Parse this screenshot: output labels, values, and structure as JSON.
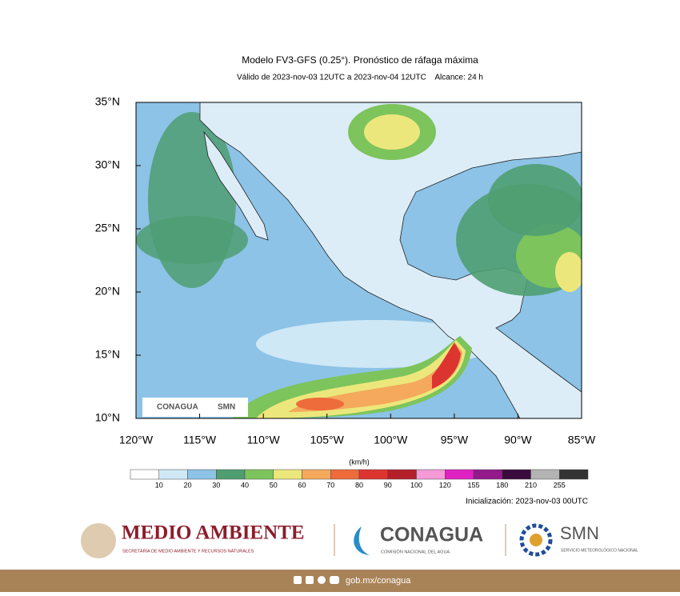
{
  "title": "Modelo FV3-GFS (0.25°). Pronóstico de ráfaga máxima",
  "subtitle": "Válido de 2023-nov-03 12UTC a 2023-nov-04 12UTC    Alcance: 24 h",
  "map": {
    "lat_ticks": [
      {
        "value": 35,
        "label": "35°N"
      },
      {
        "value": 30,
        "label": "30°N"
      },
      {
        "value": 25,
        "label": "25°N"
      },
      {
        "value": 20,
        "label": "20°N"
      },
      {
        "value": 15,
        "label": "15°N"
      },
      {
        "value": 10,
        "label": "10°N"
      }
    ],
    "lon_ticks": [
      {
        "value": -120,
        "label": "120°W"
      },
      {
        "value": -115,
        "label": "115°W"
      },
      {
        "value": -110,
        "label": "110°W"
      },
      {
        "value": -105,
        "label": "105°W"
      },
      {
        "value": -100,
        "label": "100°W"
      },
      {
        "value": -95,
        "label": "95°W"
      },
      {
        "value": -90,
        "label": "90°W"
      },
      {
        "value": -85,
        "label": "85°W"
      }
    ],
    "latlim": [
      10,
      35
    ],
    "lonlim": [
      -120,
      -85
    ],
    "inset_logos": [
      "CONAGUA",
      "SMN"
    ]
  },
  "colorbar": {
    "unit": "(km/h)",
    "colors": [
      "#ffffff",
      "#cfe8f6",
      "#8cc3e6",
      "#4f9e72",
      "#7dc45c",
      "#ece77c",
      "#f4a95c",
      "#ee6b3b",
      "#dc3530",
      "#b51f2a",
      "#f59ad6",
      "#e022c2",
      "#93198c",
      "#3b0b3d",
      "#b3b3b3",
      "#333333"
    ],
    "labels": [
      10,
      20,
      30,
      40,
      50,
      60,
      70,
      80,
      90,
      100,
      120,
      155,
      180,
      210,
      255
    ]
  },
  "initialization": "Inicialización: 2023-nov-03 00UTC",
  "footer": {
    "semarnat": {
      "name": "MEDIO AMBIENTE",
      "subtitle": "SECRETARÍA DE MEDIO AMBIENTE Y RECURSOS NATURALES"
    },
    "conagua": {
      "name": "CONAGUA",
      "subtitle": "COMISIÓN NACIONAL DEL AGUA"
    },
    "smn": {
      "name": "SMN",
      "subtitle": "SERVICIO METEOROLÓGICO NACIONAL"
    },
    "link": "gob.mx/conagua"
  }
}
